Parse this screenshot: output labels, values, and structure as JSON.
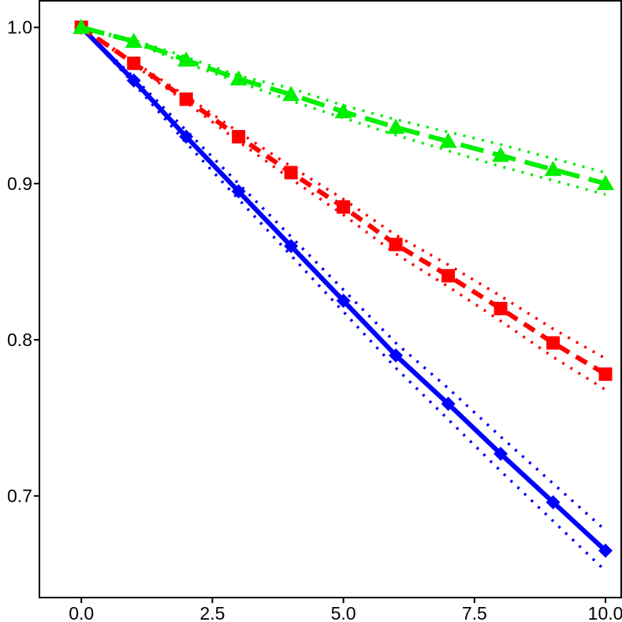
{
  "chart_data": {
    "type": "line",
    "title": "",
    "xlabel": "",
    "ylabel": "",
    "xlim": [
      -0.8,
      10.3
    ],
    "ylim": [
      0.635,
      1.017
    ],
    "x_ticks": [
      0.0,
      2.5,
      5.0,
      7.5,
      10.0
    ],
    "x_tick_labels": [
      "0.0",
      "2.5",
      "5.0",
      "7.5",
      "10.0"
    ],
    "y_ticks": [
      0.7,
      0.8,
      0.9,
      1.0
    ],
    "y_tick_labels": [
      "0.7",
      "0.8",
      "0.9",
      "1.0"
    ],
    "grid": false,
    "legend": "none",
    "x": [
      0,
      1,
      2,
      3,
      4,
      5,
      6,
      7,
      8,
      9,
      10
    ],
    "series": [
      {
        "color": "#0000ff",
        "line_style": "solid",
        "marker": "diamond",
        "values": [
          1.0,
          0.966,
          0.93,
          0.895,
          0.86,
          0.825,
          0.79,
          0.759,
          0.727,
          0.696,
          0.665
        ],
        "lower": [
          1.0,
          0.964,
          0.926,
          0.89,
          0.854,
          0.818,
          0.782,
          0.749,
          0.716,
          0.684,
          0.652
        ],
        "upper": [
          1.0,
          0.968,
          0.934,
          0.9,
          0.866,
          0.832,
          0.798,
          0.769,
          0.738,
          0.708,
          0.678
        ]
      },
      {
        "color": "#ff0000",
        "line_style": "dashed",
        "marker": "square",
        "values": [
          1.0,
          0.977,
          0.954,
          0.93,
          0.907,
          0.885,
          0.861,
          0.841,
          0.82,
          0.798,
          0.778
        ],
        "lower": [
          1.0,
          0.976,
          0.952,
          0.927,
          0.903,
          0.88,
          0.855,
          0.834,
          0.812,
          0.789,
          0.768
        ],
        "upper": [
          1.0,
          0.978,
          0.956,
          0.933,
          0.911,
          0.89,
          0.867,
          0.848,
          0.828,
          0.807,
          0.788
        ]
      },
      {
        "color": "#00ee00",
        "line_style": "long-dashed",
        "marker": "triangle",
        "values": [
          1.0,
          0.991,
          0.979,
          0.967,
          0.957,
          0.946,
          0.936,
          0.927,
          0.918,
          0.909,
          0.9
        ],
        "lower": [
          1.0,
          0.99,
          0.977,
          0.965,
          0.953,
          0.942,
          0.931,
          0.921,
          0.911,
          0.902,
          0.893
        ],
        "upper": [
          1.0,
          0.992,
          0.981,
          0.969,
          0.961,
          0.95,
          0.941,
          0.933,
          0.925,
          0.916,
          0.907
        ]
      }
    ]
  }
}
